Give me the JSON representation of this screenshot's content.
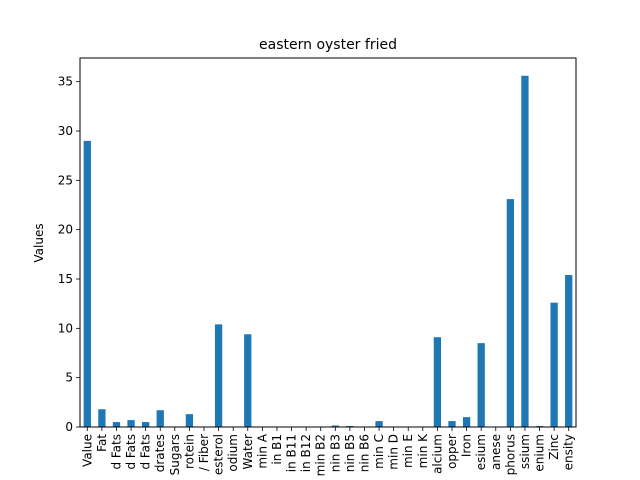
{
  "chart_data": {
    "type": "bar",
    "title": "eastern oyster fried",
    "xlabel": "",
    "ylabel": "Values",
    "ylim": [
      0,
      37.4
    ],
    "yticks": [
      0,
      5,
      10,
      15,
      20,
      25,
      30,
      35
    ],
    "grid": false,
    "legend": "none",
    "bar_color": "#1f77b4",
    "categories": [
      "Value",
      "Fat",
      "d Fats",
      "d Fats",
      "d Fats",
      "drates",
      "Sugars",
      "rotein",
      "/ Fiber",
      "esterol",
      "odium",
      "Water",
      "min A",
      "in B1",
      "in B11",
      "in B12",
      "min B2",
      "nin B3",
      "nin B5",
      "nin B6",
      "min C",
      "min D",
      "min E",
      "min K",
      "alcium",
      "opper",
      "Iron",
      "esium",
      "anese",
      "phorus",
      "ssium",
      "enium",
      "Zinc",
      "ensity"
    ],
    "values": [
      29.0,
      1.8,
      0.5,
      0.7,
      0.5,
      1.7,
      0.0,
      1.3,
      0.0,
      10.4,
      0.0,
      9.4,
      0.0,
      0.0,
      0.0,
      0.0,
      0.05,
      0.15,
      0.1,
      0.05,
      0.6,
      0.0,
      0.0,
      0.0,
      9.1,
      0.6,
      1.0,
      8.5,
      0.0,
      23.1,
      35.6,
      0.1,
      12.6,
      15.4
    ]
  }
}
